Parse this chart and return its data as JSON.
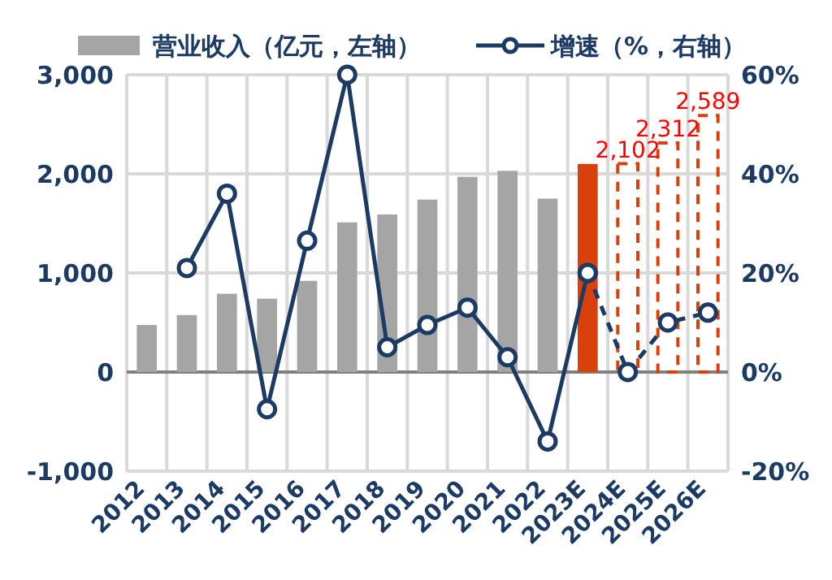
{
  "chart_data": {
    "type": "bar",
    "categories": [
      "2012",
      "2013",
      "2014",
      "2015",
      "2016",
      "2017",
      "2018",
      "2019",
      "2020",
      "2021",
      "2022",
      "2023E",
      "2024E",
      "2025E",
      "2026E"
    ],
    "series": [
      {
        "name": "营业收入（亿元，左轴）",
        "color": "#a5a5a5",
        "colors": [
          "#a5a5a5",
          "#a5a5a5",
          "#a5a5a5",
          "#a5a5a5",
          "#a5a5a5",
          "#a5a5a5",
          "#a5a5a5",
          "#a5a5a5",
          "#a5a5a5",
          "#a5a5a5",
          "#a5a5a5",
          "#d9400b",
          null,
          null,
          null
        ],
        "values": [
          475,
          575,
          790,
          740,
          920,
          1510,
          1590,
          1740,
          1970,
          2030,
          1750,
          2100,
          null,
          null,
          null
        ]
      },
      {
        "color": "#d9400b",
        "line_style": "dashed",
        "values": [
          null,
          null,
          null,
          null,
          null,
          null,
          null,
          null,
          null,
          null,
          null,
          null,
          2102,
          2312,
          2589
        ],
        "value_labels": [
          null,
          null,
          null,
          null,
          null,
          null,
          null,
          null,
          null,
          null,
          null,
          null,
          "2,102",
          "2,312",
          "2,589"
        ]
      },
      {
        "name": "增速（%，右轴）",
        "type": "line",
        "axis": "y2",
        "color": "#1b3a64",
        "marker": "circle",
        "line_style": "solid",
        "values": [
          null,
          21,
          36,
          -7.5,
          26.5,
          60,
          5,
          9.5,
          13,
          3,
          -14,
          20,
          null,
          null,
          null
        ]
      },
      {
        "type": "line",
        "axis": "y2",
        "color": "#1b3a64",
        "marker": "circle",
        "line_style": "dashed",
        "values": [
          null,
          null,
          null,
          null,
          null,
          null,
          null,
          null,
          null,
          null,
          null,
          20,
          0,
          10,
          12
        ]
      }
    ],
    "ylim": [
      -1000,
      3000
    ],
    "yticks": [
      {
        "value": -1000,
        "label": "-1,000"
      },
      0,
      {
        "value": 1000,
        "label": "1,000"
      },
      {
        "value": 2000,
        "label": "2,000"
      },
      {
        "value": 3000,
        "label": "3,000"
      }
    ],
    "y2lim": [
      -20,
      60
    ],
    "y2ticks": [
      {
        "value": -20,
        "label": "-20%"
      },
      {
        "value": 0,
        "label": "0%"
      },
      {
        "value": 20,
        "label": "20%"
      },
      {
        "value": 40,
        "label": "40%"
      },
      {
        "value": 60,
        "label": "60%"
      }
    ],
    "grid": true,
    "legend": "top"
  }
}
